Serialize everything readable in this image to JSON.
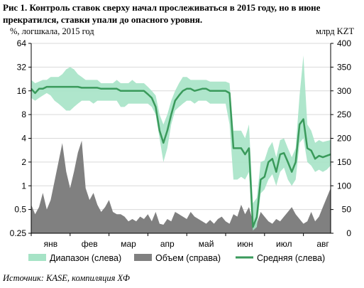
{
  "title": "Рис 1. Контроль ставок сверху начал прослеживаться в 2015 году, но в июне прекратился, ставки упали до опасного уровня.",
  "left_axis_label": "%, логшкала, 2015 год",
  "right_axis_label": "млрд KZT",
  "source": "Источник: KASE, компиляция ХФ",
  "colors": {
    "range": "#a6e3c6",
    "volume": "#808080",
    "average": "#3a9a5b"
  },
  "chart_data": {
    "type": "area",
    "title": "Рис 1. Контроль ставок сверху начал прослеживаться в 2015 году, но в июне прекратился, ставки упали до опасного уровня.",
    "y_left": {
      "label": "%, логшкала, 2015 год",
      "scale": "log2",
      "ticks": [
        "0.25",
        "0.5",
        "1",
        "2",
        "4",
        "8",
        "16",
        "32",
        "64"
      ],
      "range": [
        0.25,
        64
      ]
    },
    "y_right": {
      "label": "млрд KZT",
      "ticks": [
        "0",
        "50",
        "100",
        "150",
        "200",
        "250",
        "300",
        "350",
        "400"
      ],
      "range": [
        0,
        400
      ]
    },
    "x_ticks": [
      "янв",
      "фев",
      "мар",
      "апр",
      "май",
      "июн",
      "июл",
      "авг"
    ],
    "legend": [
      "Диапазон (слева)",
      "Объем (справа)",
      "Средняя (слева)"
    ],
    "legend_position": "bottom",
    "x_month": [
      0,
      0.1,
      0.2,
      0.3,
      0.4,
      0.5,
      0.6,
      0.7,
      0.8,
      0.9,
      1,
      1.1,
      1.2,
      1.3,
      1.4,
      1.5,
      1.6,
      1.7,
      1.8,
      1.9,
      2,
      2.1,
      2.2,
      2.3,
      2.4,
      2.5,
      2.6,
      2.7,
      2.8,
      2.9,
      3,
      3.1,
      3.2,
      3.3,
      3.4,
      3.5,
      3.6,
      3.7,
      3.8,
      3.9,
      4,
      4.1,
      4.2,
      4.3,
      4.4,
      4.5,
      4.6,
      4.7,
      4.8,
      4.9,
      5,
      5.1,
      5.2,
      5.3,
      5.4,
      5.5,
      5.6,
      5.7,
      5.8,
      5.9,
      6,
      6.1,
      6.2,
      6.3,
      6.4,
      6.5,
      6.6,
      6.7,
      6.8,
      6.9,
      7,
      7.1,
      7.2,
      7.3,
      7.4,
      7.5,
      7.6,
      7.7
    ],
    "series": [
      {
        "name": "Средняя (слева)",
        "values": [
          17,
          15,
          17,
          17,
          18,
          18,
          18,
          18,
          18,
          18,
          18,
          18,
          18,
          17.5,
          17.5,
          17.5,
          17.5,
          17.5,
          17,
          17,
          17,
          17,
          17,
          16,
          16,
          16,
          16,
          16,
          16,
          16,
          14.5,
          13,
          10,
          5,
          3.5,
          5,
          8,
          12,
          14,
          16,
          17,
          17,
          16,
          16.5,
          17,
          17,
          16,
          16,
          16,
          16,
          16,
          15,
          3,
          3,
          3,
          2.5,
          3,
          0.3,
          0.4,
          1.2,
          1.3,
          2,
          2.2,
          1.5,
          2.5,
          2.6,
          2,
          1.5,
          2,
          6,
          7,
          3,
          2.8,
          2.2,
          2.4,
          2.3,
          2.4,
          2.5
        ]
      },
      {
        "name": "Диапазон (слева)",
        "low": [
          13,
          12,
          13,
          14,
          15,
          14,
          12,
          11,
          10,
          9,
          9,
          10,
          11,
          12,
          12,
          12,
          11,
          12,
          12,
          12,
          12,
          12,
          12,
          10,
          10,
          11,
          11,
          11,
          11,
          11,
          11,
          10,
          8,
          4,
          2,
          3,
          6,
          9,
          10,
          11,
          12,
          12,
          11,
          12,
          12,
          12,
          11,
          11,
          11,
          11,
          11,
          6,
          1.2,
          1.2,
          1.3,
          1.2,
          1.5,
          0.27,
          0.3,
          0.8,
          0.9,
          1.2,
          1.4,
          1.0,
          1.5,
          1.7,
          1.2,
          1.0,
          1.2,
          3.5,
          4,
          2,
          1.8,
          1.5,
          1.6,
          1.5,
          1.6,
          1.8
        ],
        "high": [
          22,
          20,
          21,
          22,
          22,
          24,
          24,
          24,
          26,
          30,
          32,
          30,
          26,
          24,
          22,
          22,
          22,
          22,
          20,
          20,
          20,
          20,
          22,
          20,
          20,
          20,
          22,
          20,
          20,
          20,
          18,
          16,
          14,
          8,
          6,
          8,
          12,
          16,
          20,
          24,
          24,
          22,
          22,
          22,
          22,
          22,
          21,
          21,
          21,
          21,
          21,
          20,
          5,
          5,
          5,
          4,
          6,
          0.6,
          0.7,
          2,
          2.1,
          3,
          3.6,
          2.3,
          3.8,
          4,
          3,
          2.3,
          3,
          14,
          45,
          6,
          5,
          3.5,
          3.8,
          3.6,
          3.7,
          3.8
        ]
      },
      {
        "name": "Объем (справа)",
        "values": [
          60,
          40,
          55,
          85,
          50,
          70,
          110,
          150,
          190,
          130,
          95,
          130,
          170,
          195,
          95,
          70,
          85,
          60,
          45,
          55,
          70,
          45,
          40,
          40,
          35,
          25,
          30,
          25,
          35,
          30,
          40,
          25,
          45,
          20,
          18,
          30,
          25,
          45,
          40,
          35,
          30,
          45,
          35,
          30,
          25,
          20,
          28,
          20,
          30,
          35,
          25,
          20,
          40,
          35,
          60,
          40,
          55,
          25,
          20,
          45,
          35,
          25,
          20,
          30,
          25,
          35,
          45,
          55,
          40,
          30,
          20,
          25,
          45,
          25,
          35,
          55,
          75,
          95
        ]
      }
    ]
  }
}
